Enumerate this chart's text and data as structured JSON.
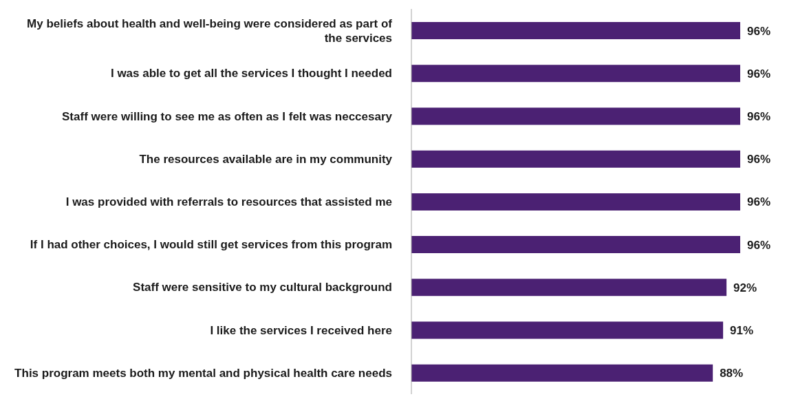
{
  "chart_data": {
    "type": "bar",
    "orientation": "horizontal",
    "categories": [
      "My beliefs about health and well-being were considered as part of the services",
      "I was able to get all the services I thought I needed",
      "Staff were willing to see me as often as I felt was neccesary",
      "The resources available are in my community",
      "I was provided with referrals to resources that assisted me",
      "If I had other choices, I would still get services from this program",
      "Staff were sensitive to my cultural background",
      "I like the services I received here",
      "This program meets both my mental and physical health care needs"
    ],
    "values": [
      96,
      96,
      96,
      96,
      96,
      96,
      92,
      91,
      88
    ],
    "value_labels": [
      "96%",
      "96%",
      "96%",
      "96%",
      "96%",
      "96%",
      "92%",
      "91%",
      "88%"
    ],
    "color": "#4b2173"
  }
}
